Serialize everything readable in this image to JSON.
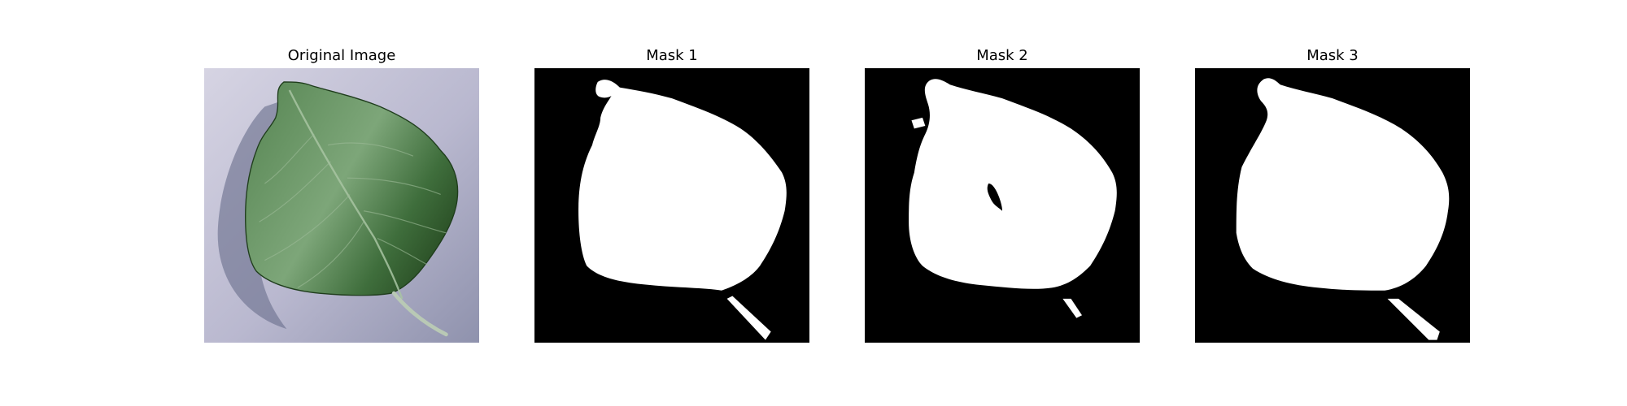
{
  "figure": {
    "panels": [
      {
        "title": "Original Image"
      },
      {
        "title": "Mask 1"
      },
      {
        "title": "Mask 2"
      },
      {
        "title": "Mask 3"
      }
    ]
  },
  "colors": {
    "background": "#ffffff",
    "mask_background": "#000000",
    "mask_foreground": "#ffffff",
    "leaf_dark": "#2e5a2c",
    "leaf_mid": "#4f7f4c",
    "leaf_light": "#8fb08a",
    "backdrop_light": "#c9c8da",
    "backdrop_shadow": "#7b7e98"
  }
}
